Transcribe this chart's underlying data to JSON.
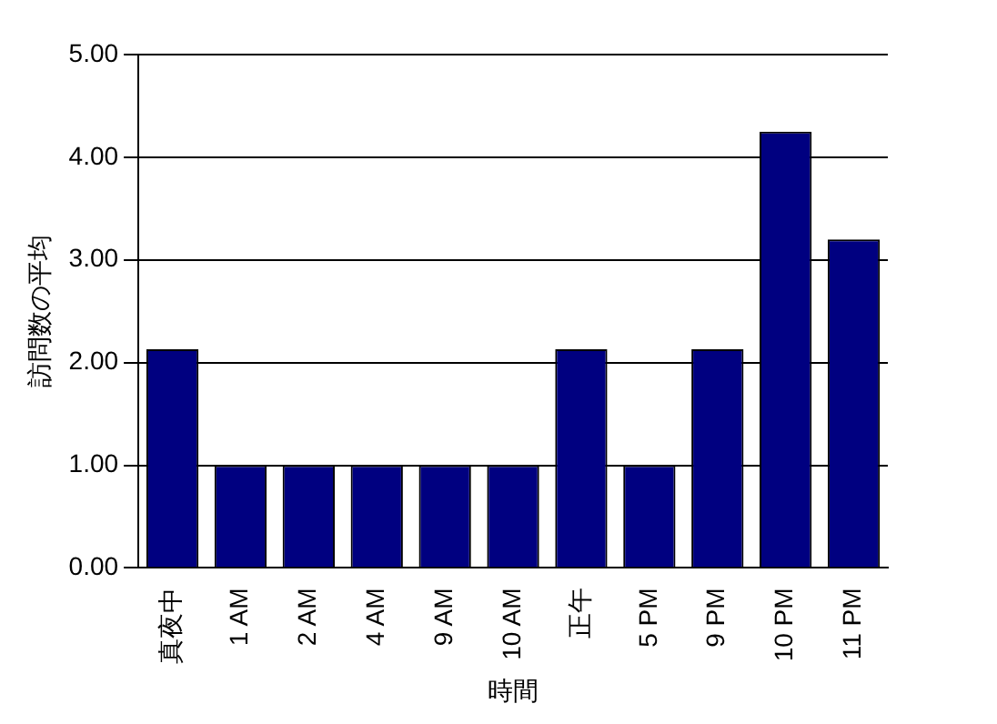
{
  "chart_data": {
    "type": "bar",
    "xlabel": "時間",
    "ylabel": "訪問数の平均",
    "categories": [
      "真夜中",
      "1 AM",
      "2 AM",
      "4 AM",
      "9 AM",
      "10 AM",
      "正午",
      "5 PM",
      "9 PM",
      "10 PM",
      "11 PM"
    ],
    "values": [
      2.13,
      1,
      1,
      1,
      1,
      1,
      2.13,
      1,
      2.13,
      4.25,
      3.2
    ],
    "color": "#000080",
    "ylim": [
      0,
      5
    ],
    "yticks": [
      {
        "value": 0,
        "label": "0.00"
      },
      {
        "value": 1,
        "label": "1.00"
      },
      {
        "value": 2,
        "label": "2.00"
      },
      {
        "value": 3,
        "label": "3.00"
      },
      {
        "value": 4,
        "label": "4.00"
      },
      {
        "value": 5,
        "label": "5.00"
      }
    ],
    "grid": "y",
    "legend": false
  }
}
